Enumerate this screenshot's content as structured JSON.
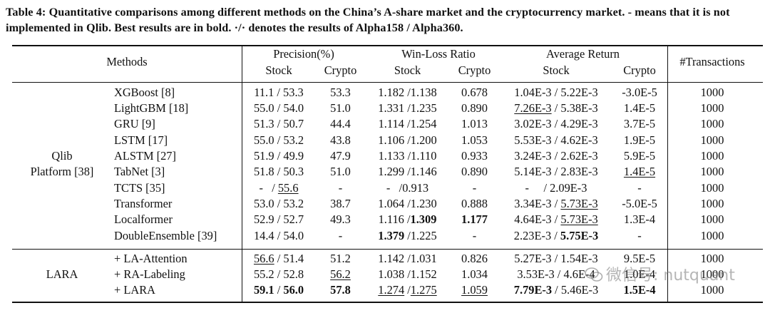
{
  "caption": "Table 4: Quantitative comparisons among different methods on the China’s A-share market and the cryptocurrency market. - means that it is not implemented in Qlib. Best results are in bold. ·/· denotes the results of Alpha158 / Alpha360.",
  "header": {
    "methods": "Methods",
    "precision": "Precision(%)",
    "winloss": "Win-Loss Ratio",
    "avgret": "Average Return",
    "transactions": "#Transactions",
    "stock": "Stock",
    "crypto": "Crypto"
  },
  "groups": {
    "qlib_line1": "Qlib",
    "qlib_line2": "Platform [38]",
    "lara": "LARA"
  },
  "rows": [
    {
      "m": "XGBoost [8]",
      "ps": [
        {
          "t": "11.1 / 53.3"
        }
      ],
      "pc": [
        {
          "t": "53.3"
        }
      ],
      "ws": [
        {
          "t": "1.182 /1.138"
        }
      ],
      "wc": [
        {
          "t": "0.678"
        }
      ],
      "as": [
        {
          "t": "1.04E-3 / 5.22E-3"
        }
      ],
      "ac": [
        {
          "t": "-3.0E-5"
        }
      ],
      "tr": "1000"
    },
    {
      "m": "LightGBM [18]",
      "ps": [
        {
          "t": "55.0 / 54.0"
        }
      ],
      "pc": [
        {
          "t": "51.0"
        }
      ],
      "ws": [
        {
          "t": "1.331 /1.235"
        }
      ],
      "wc": [
        {
          "t": "0.890"
        }
      ],
      "as": [
        {
          "t": "7.26E-3",
          "u": true
        },
        {
          "t": " / 5.38E-3"
        }
      ],
      "ac": [
        {
          "t": "1.4E-5"
        }
      ],
      "tr": "1000"
    },
    {
      "m": "GRU [9]",
      "ps": [
        {
          "t": "51.3 / 50.7"
        }
      ],
      "pc": [
        {
          "t": "44.4"
        }
      ],
      "ws": [
        {
          "t": "1.114 /1.254"
        }
      ],
      "wc": [
        {
          "t": "1.013"
        }
      ],
      "as": [
        {
          "t": "3.02E-3 / 4.29E-3"
        }
      ],
      "ac": [
        {
          "t": "3.7E-5"
        }
      ],
      "tr": "1000"
    },
    {
      "m": "LSTM [17]",
      "ps": [
        {
          "t": "55.0 / 53.2"
        }
      ],
      "pc": [
        {
          "t": "43.8"
        }
      ],
      "ws": [
        {
          "t": "1.106 /1.200"
        }
      ],
      "wc": [
        {
          "t": "1.053"
        }
      ],
      "as": [
        {
          "t": "5.53E-3 / 4.62E-3"
        }
      ],
      "ac": [
        {
          "t": "1.9E-5"
        }
      ],
      "tr": "1000"
    },
    {
      "m": "ALSTM [27]",
      "ps": [
        {
          "t": "51.9 / 49.9"
        }
      ],
      "pc": [
        {
          "t": "47.9"
        }
      ],
      "ws": [
        {
          "t": "1.133 /1.110"
        }
      ],
      "wc": [
        {
          "t": "0.933"
        }
      ],
      "as": [
        {
          "t": "3.24E-3 / 2.62E-3"
        }
      ],
      "ac": [
        {
          "t": "5.9E-5"
        }
      ],
      "tr": "1000"
    },
    {
      "m": "TabNet [3]",
      "ps": [
        {
          "t": "51.8 / 50.3"
        }
      ],
      "pc": [
        {
          "t": "51.0"
        }
      ],
      "ws": [
        {
          "t": "1.299 /1.146"
        }
      ],
      "wc": [
        {
          "t": "0.890"
        }
      ],
      "as": [
        {
          "t": "5.14E-3 / 2.83E-3"
        }
      ],
      "ac": [
        {
          "t": "1.4E-5",
          "u": true
        }
      ],
      "tr": "1000"
    },
    {
      "m": "TCTS [35]",
      "ps": [
        {
          "t": "-   / "
        },
        {
          "t": "55.6",
          "u": true
        }
      ],
      "pc": [
        {
          "t": "-"
        }
      ],
      "ws": [
        {
          "t": "-   /0.913"
        }
      ],
      "wc": [
        {
          "t": "-"
        }
      ],
      "as": [
        {
          "t": "-     / 2.09E-3"
        }
      ],
      "ac": [
        {
          "t": "-"
        }
      ],
      "tr": "1000"
    },
    {
      "m": "Transformer",
      "ps": [
        {
          "t": "53.0 / 53.2"
        }
      ],
      "pc": [
        {
          "t": "38.7"
        }
      ],
      "ws": [
        {
          "t": "1.064 /1.230"
        }
      ],
      "wc": [
        {
          "t": "0.888"
        }
      ],
      "as": [
        {
          "t": "3.34E-3 / "
        },
        {
          "t": "5.73E-3",
          "u": true
        }
      ],
      "ac": [
        {
          "t": "-5.0E-5"
        }
      ],
      "tr": "1000"
    },
    {
      "m": "Localformer",
      "ps": [
        {
          "t": "52.9 / 52.7"
        }
      ],
      "pc": [
        {
          "t": "49.3"
        }
      ],
      "ws": [
        {
          "t": "1.116 /"
        },
        {
          "t": "1.309",
          "b": true
        }
      ],
      "wc": [
        {
          "t": "1.177",
          "b": true
        }
      ],
      "as": [
        {
          "t": "4.64E-3 / "
        },
        {
          "t": "5.73E-3",
          "u": true
        }
      ],
      "ac": [
        {
          "t": "1.3E-4"
        }
      ],
      "tr": "1000"
    },
    {
      "m": "DoubleEnsemble [39]",
      "ps": [
        {
          "t": "14.4 / 54.0"
        }
      ],
      "pc": [
        {
          "t": "-"
        }
      ],
      "ws": [
        {
          "t": "1.379",
          "b": true
        },
        {
          "t": " /1.225"
        }
      ],
      "wc": [
        {
          "t": "-"
        }
      ],
      "as": [
        {
          "t": "2.23E-3 / "
        },
        {
          "t": "5.75E-3",
          "b": true
        }
      ],
      "ac": [
        {
          "t": "-"
        }
      ],
      "tr": "1000"
    },
    {
      "m": "+ LA-Attention",
      "ps": [
        {
          "t": "56.6",
          "u": true
        },
        {
          "t": " / 51.4"
        }
      ],
      "pc": [
        {
          "t": "51.2"
        }
      ],
      "ws": [
        {
          "t": "1.142 /1.031"
        }
      ],
      "wc": [
        {
          "t": "0.826"
        }
      ],
      "as": [
        {
          "t": "5.27E-3 / 1.54E-3"
        }
      ],
      "ac": [
        {
          "t": "9.5E-5"
        }
      ],
      "tr": "1000"
    },
    {
      "m": "+ RA-Labeling",
      "ps": [
        {
          "t": "55.2 / 52.8"
        }
      ],
      "pc": [
        {
          "t": "56.2",
          "u": true
        }
      ],
      "ws": [
        {
          "t": "1.038 /1.152"
        }
      ],
      "wc": [
        {
          "t": "1.034"
        }
      ],
      "as": [
        {
          "t": "3.53E-3 / 4.6E-4"
        }
      ],
      "ac": [
        {
          "t": "1.0E-4"
        }
      ],
      "tr": "1000"
    },
    {
      "m": "+ LARA",
      "ps": [
        {
          "t": "59.1",
          "b": true
        },
        {
          "t": " / "
        },
        {
          "t": "56.0",
          "b": true
        }
      ],
      "pc": [
        {
          "t": "57.8",
          "b": true
        }
      ],
      "ws": [
        {
          "t": "1.274",
          "u": true
        },
        {
          "t": " /"
        },
        {
          "t": "1.275",
          "u": true
        }
      ],
      "wc": [
        {
          "t": "1.059",
          "u": true
        }
      ],
      "as": [
        {
          "t": "7.79E-3",
          "b": true
        },
        {
          "t": " / 5.46E-3"
        }
      ],
      "ac": [
        {
          "t": "1.5E-4",
          "b": true
        }
      ],
      "tr": "1000"
    }
  ],
  "watermark": "微信号: nutquant"
}
